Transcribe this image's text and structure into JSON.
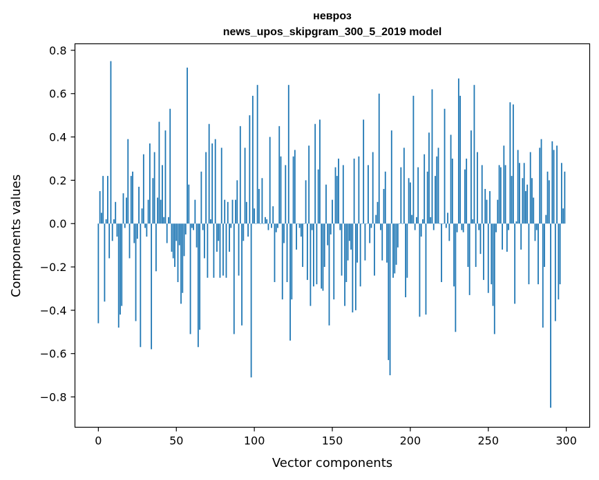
{
  "chart_data": {
    "type": "bar",
    "title": "невроз",
    "subtitle": "news_upos_skipgram_300_5_2019 model",
    "xlabel": "Vector components",
    "ylabel": "Components values",
    "xlim": [
      -15,
      315
    ],
    "ylim": [
      -0.94,
      0.83
    ],
    "xticks": [
      0,
      50,
      100,
      150,
      200,
      250,
      300
    ],
    "xtick_labels": [
      "0",
      "50",
      "100",
      "150",
      "200",
      "250",
      "300"
    ],
    "yticks": [
      -0.8,
      -0.6,
      -0.4,
      -0.2,
      0.0,
      0.2,
      0.4,
      0.6,
      0.8
    ],
    "ytick_labels": [
      "−0.8",
      "−0.6",
      "−0.4",
      "−0.2",
      "0.0",
      "0.2",
      "0.4",
      "0.6",
      "0.8"
    ],
    "grid": false,
    "color": "#1f77b4",
    "values": [
      -0.46,
      0.15,
      0.05,
      0.22,
      -0.36,
      0.02,
      0.22,
      -0.16,
      0.75,
      -0.08,
      0.02,
      0.1,
      -0.06,
      -0.48,
      -0.42,
      -0.38,
      0.14,
      -0.02,
      0.12,
      0.39,
      -0.16,
      0.22,
      0.24,
      -0.09,
      -0.45,
      -0.07,
      0.17,
      -0.57,
      0.07,
      0.32,
      -0.02,
      -0.06,
      0.11,
      0.37,
      -0.58,
      0.21,
      0.33,
      -0.22,
      0.12,
      0.47,
      0.11,
      0.27,
      0.03,
      0.43,
      -0.09,
      0.03,
      0.53,
      -0.13,
      -0.16,
      -0.2,
      -0.08,
      -0.27,
      -0.1,
      -0.37,
      -0.32,
      -0.15,
      -0.05,
      0.72,
      0.18,
      -0.51,
      -0.02,
      -0.03,
      0.11,
      -0.11,
      -0.57,
      -0.49,
      0.24,
      -0.03,
      -0.16,
      0.33,
      -0.25,
      0.46,
      0.02,
      0.37,
      -0.25,
      0.39,
      -0.13,
      -0.08,
      -0.25,
      0.35,
      -0.24,
      0.11,
      -0.25,
      0.1,
      -0.13,
      -0.02,
      0.11,
      -0.51,
      0.11,
      0.2,
      -0.24,
      0.45,
      -0.47,
      -0.08,
      0.35,
      0.1,
      -0.06,
      0.5,
      -0.71,
      0.59,
      0.07,
      0.0,
      0.64,
      0.16,
      0.0,
      0.21,
      0.0,
      0.03,
      0.02,
      -0.03,
      0.4,
      -0.02,
      0.08,
      -0.27,
      -0.04,
      -0.02,
      0.45,
      0.31,
      -0.35,
      -0.09,
      0.27,
      -0.27,
      0.64,
      -0.54,
      -0.35,
      0.31,
      0.34,
      -0.12,
      0.0,
      -0.02,
      -0.06,
      -0.2,
      0.0,
      0.2,
      -0.26,
      0.36,
      -0.38,
      -0.03,
      -0.29,
      0.46,
      -0.28,
      0.25,
      0.48,
      -0.3,
      -0.31,
      -0.2,
      0.18,
      -0.1,
      -0.47,
      -0.05,
      0.11,
      -0.35,
      0.26,
      0.22,
      0.3,
      -0.03,
      -0.24,
      0.27,
      -0.38,
      -0.27,
      -0.17,
      -0.08,
      -0.12,
      -0.41,
      0.3,
      -0.4,
      -0.18,
      0.31,
      -0.29,
      0.0,
      0.48,
      -0.17,
      0.0,
      0.27,
      -0.09,
      -0.02,
      0.33,
      -0.24,
      0.04,
      0.1,
      0.6,
      -0.03,
      -0.17,
      0.16,
      0.24,
      -0.18,
      -0.63,
      -0.7,
      0.43,
      -0.25,
      -0.23,
      -0.19,
      -0.11,
      0.0,
      0.26,
      0.0,
      0.35,
      -0.34,
      -0.25,
      0.21,
      0.19,
      0.04,
      0.59,
      -0.03,
      0.03,
      0.26,
      -0.43,
      -0.06,
      0.02,
      0.32,
      -0.42,
      0.24,
      0.42,
      0.03,
      0.62,
      -0.03,
      0.22,
      0.31,
      0.35,
      0.0,
      -0.27,
      0.0,
      0.53,
      -0.02,
      0.05,
      -0.08,
      0.41,
      0.3,
      -0.29,
      -0.5,
      -0.04,
      0.67,
      0.59,
      -0.03,
      -0.04,
      0.25,
      0.3,
      -0.2,
      -0.33,
      0.43,
      0.02,
      0.64,
      -0.2,
      0.33,
      -0.03,
      -0.14,
      0.27,
      -0.26,
      0.16,
      0.11,
      -0.32,
      0.15,
      -0.28,
      -0.38,
      -0.51,
      -0.04,
      0.11,
      0.27,
      0.26,
      -0.12,
      0.36,
      0.27,
      -0.13,
      -0.03,
      0.56,
      0.22,
      0.55,
      -0.37,
      0.01,
      0.34,
      0.28,
      -0.12,
      0.21,
      0.28,
      0.15,
      0.18,
      -0.28,
      0.33,
      0.21,
      0.12,
      -0.08,
      -0.03,
      -0.28,
      0.35,
      0.39,
      -0.48,
      -0.2,
      0.04,
      0.24,
      0.2,
      -0.85,
      0.38,
      0.34,
      -0.45,
      0.36,
      -0.35,
      -0.28,
      0.28,
      0.07,
      0.24
    ]
  }
}
